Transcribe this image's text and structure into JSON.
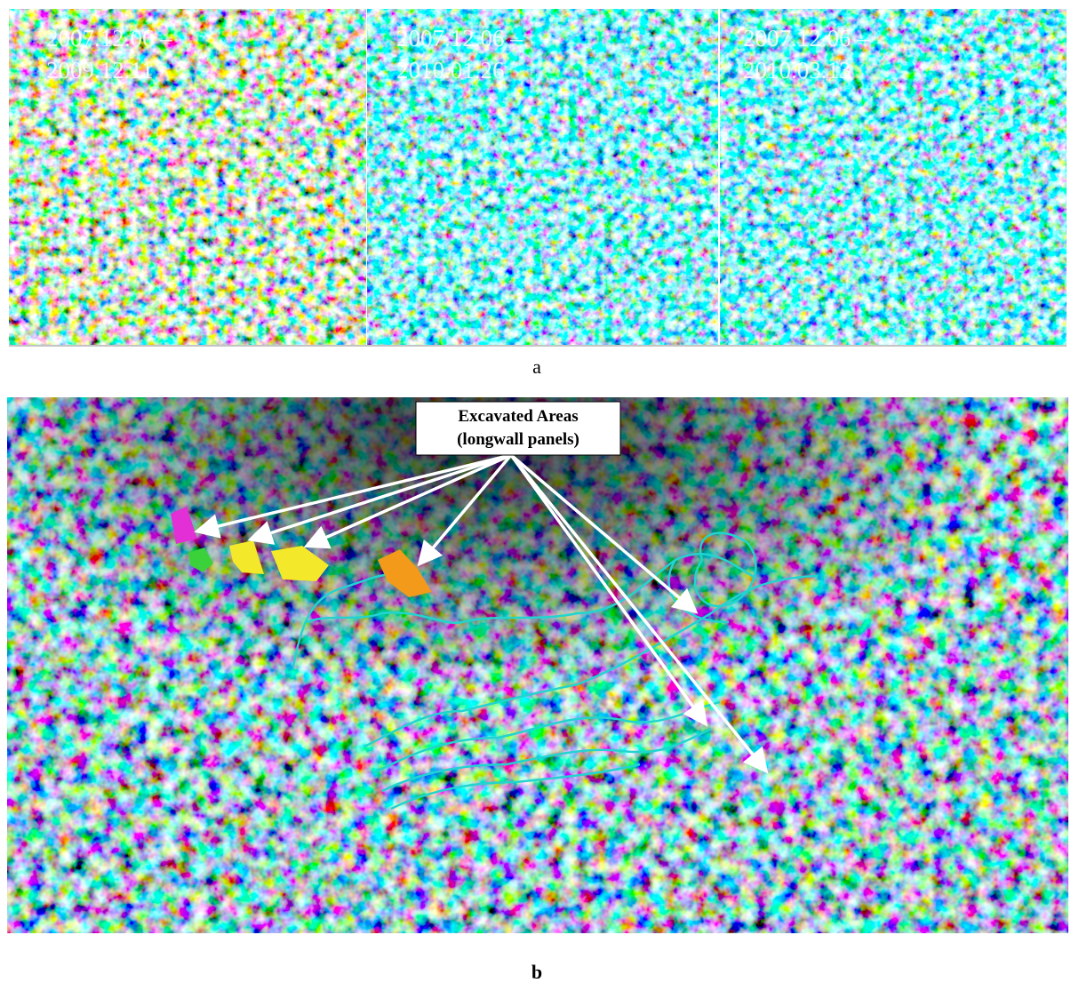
{
  "panel_a": {
    "images": [
      {
        "dates": [
          "2007.12.06 –",
          "2009.12.11"
        ]
      },
      {
        "dates": [
          "2007.12.06 –",
          "2010.01.26"
        ]
      },
      {
        "dates": [
          "2007.12.06 –",
          "2010.03.13"
        ]
      }
    ],
    "caption": "a"
  },
  "panel_b": {
    "callout": [
      "Excavated  Areas",
      "(longwall panels)"
    ],
    "caption": "b"
  }
}
